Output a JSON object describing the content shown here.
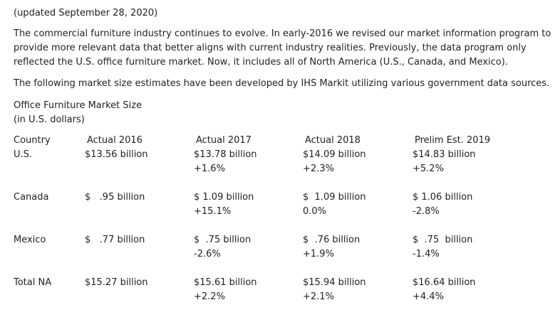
{
  "updated_note": "(updated September 28, 2020)",
  "paragraphs": [
    "The commercial furniture industry continues to evolve. In early-2016 we revised our market information program to provide more relevant data that better aligns with current industry realities. Previously, the data program only reflected the U.S. office furniture market. Now, it includes all of North America (U.S., Canada, and Mexico).",
    "The following market size estimates have been developed by IHS Markit utilizing various government data sources."
  ],
  "caption": {
    "title": "Office Furniture Market Size",
    "unit": "(in U.S. dollars)"
  },
  "table": {
    "headers": [
      "Country",
      "Actual 2016",
      "Actual 2017",
      "Actual 2018",
      "Prelim Est. 2019"
    ],
    "rows": [
      {
        "country": "U.S.",
        "values": [
          "$13.56 billion",
          "$13.78 billion",
          "$14.09 billion",
          "$14.83 billion"
        ],
        "changes": [
          "",
          "+1.6%",
          "+2.3%",
          "+5.2%"
        ]
      },
      {
        "country": "Canada",
        "values": [
          "$   .95 billion",
          "$ 1.09 billion",
          "$  1.09 billion",
          "$ 1.06 billion"
        ],
        "changes": [
          "",
          "+15.1%",
          "0.0%",
          "-2.8%"
        ]
      },
      {
        "country": "Mexico",
        "values": [
          "$   .77 billion",
          "$  .75 billion",
          "$  .76 billion",
          "$  .75  billion"
        ],
        "changes": [
          "",
          "-2.6%",
          "+1.9%",
          "-1.4%"
        ]
      },
      {
        "country": "Total NA",
        "values": [
          "$15.27 billion",
          "$15.61 billion",
          "$15.94 billion",
          "$16.64 billion"
        ],
        "changes": [
          "",
          "+2.2%",
          "+2.1%",
          "+4.4%"
        ]
      }
    ]
  }
}
